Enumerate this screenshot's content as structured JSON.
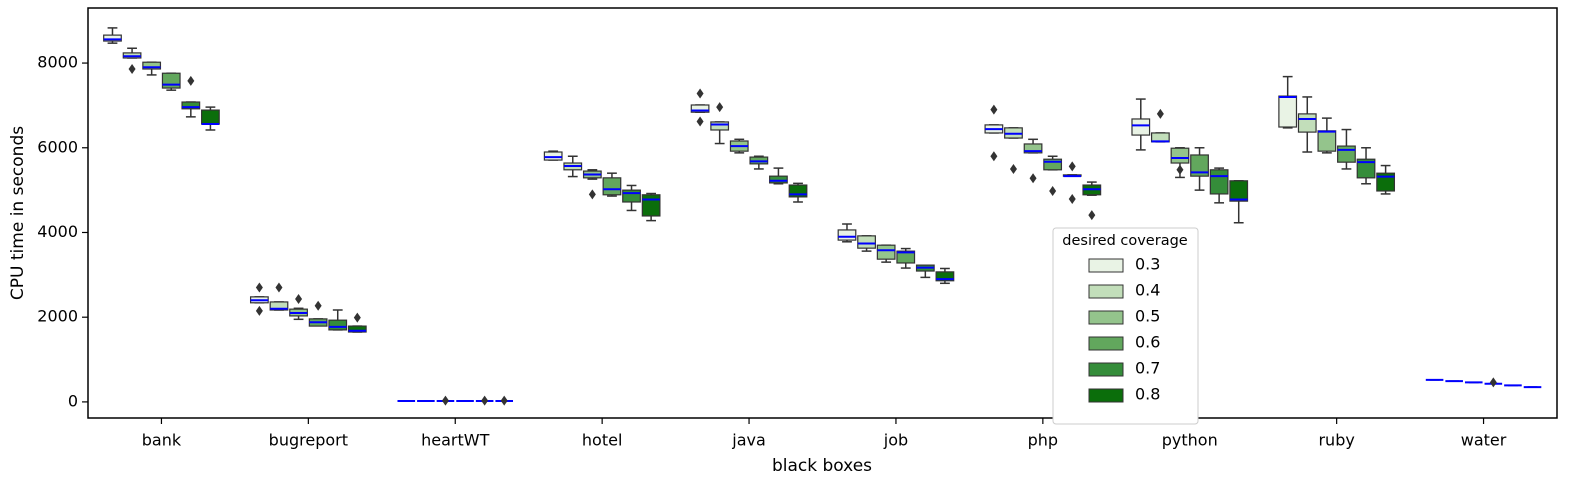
{
  "chart_data": {
    "type": "boxplot",
    "xlabel": "black boxes",
    "ylabel": "CPU time in seconds",
    "categories": [
      "bank",
      "bugreport",
      "heartWT",
      "hotel",
      "java",
      "job",
      "php",
      "python",
      "ruby",
      "water"
    ],
    "ylim": [
      -380,
      9300
    ],
    "yticks": [
      0,
      2000,
      4000,
      6000,
      8000
    ],
    "median_color": "#0000ff",
    "legend_loc": "best",
    "legend_title": "desired coverage",
    "series": [
      {
        "name": "0.3",
        "color": "#e9f3e5",
        "values": [
          [
            8470,
            8520,
            8560,
            8660,
            8830
          ],
          [
            2340,
            2340,
            2400,
            2480,
            2480
          ],
          [
            20,
            20,
            20,
            20,
            20
          ],
          [
            5710,
            5710,
            5780,
            5900,
            5920
          ],
          [
            6840,
            6840,
            6880,
            7010,
            7010
          ],
          [
            3780,
            3820,
            3900,
            4060,
            4200
          ],
          [
            6350,
            6350,
            6440,
            6540,
            6540
          ],
          [
            5950,
            6300,
            6530,
            6680,
            7150
          ],
          [
            6470,
            6490,
            7200,
            7220,
            7680
          ],
          [
            520,
            520,
            520,
            520,
            520
          ]
        ],
        "outliers": [
          [],
          [
            2700,
            2150
          ],
          [],
          [],
          [
            7280,
            6620
          ],
          [],
          [
            6900,
            5800
          ],
          [],
          [],
          []
        ]
      },
      {
        "name": "0.4",
        "color": "#c2deba",
        "values": [
          [
            8120,
            8120,
            8160,
            8240,
            8350
          ],
          [
            2170,
            2170,
            2200,
            2360,
            2360
          ],
          [
            20,
            20,
            20,
            20,
            20
          ],
          [
            5320,
            5480,
            5570,
            5640,
            5800
          ],
          [
            6100,
            6420,
            6550,
            6610,
            6610
          ],
          [
            3560,
            3630,
            3740,
            3920,
            3920
          ],
          [
            6230,
            6230,
            6330,
            6470,
            6470
          ],
          [
            6140,
            6140,
            6150,
            6350,
            6350
          ],
          [
            5900,
            6370,
            6680,
            6800,
            7200
          ],
          [
            490,
            490,
            490,
            490,
            490
          ]
        ],
        "outliers": [
          [
            7860
          ],
          [
            2700
          ],
          [],
          [],
          [
            6960
          ],
          [],
          [
            5500
          ],
          [
            6800
          ],
          [],
          []
        ]
      },
      {
        "name": "0.5",
        "color": "#94c48c",
        "values": [
          [
            7720,
            7860,
            7900,
            8020,
            8020
          ],
          [
            1950,
            2030,
            2100,
            2190,
            2210
          ],
          [
            20,
            20,
            20,
            20,
            20
          ],
          [
            5260,
            5290,
            5370,
            5450,
            5480
          ],
          [
            5880,
            5920,
            6040,
            6160,
            6200
          ],
          [
            3300,
            3370,
            3580,
            3700,
            3700
          ],
          [
            5880,
            5880,
            5920,
            6090,
            6200
          ],
          [
            5300,
            5640,
            5760,
            5990,
            6000
          ],
          [
            5880,
            5920,
            6380,
            6400,
            6700
          ],
          [
            460,
            460,
            460,
            460,
            460
          ]
        ],
        "outliers": [
          [],
          [
            2430
          ],
          [
            30
          ],
          [
            4900
          ],
          [],
          [],
          [
            5280
          ],
          [
            5480
          ],
          [],
          []
        ]
      },
      {
        "name": "0.6",
        "color": "#62a75d",
        "values": [
          [
            7360,
            7410,
            7490,
            7760,
            7760
          ],
          [
            1800,
            1790,
            1880,
            1960,
            1960
          ],
          [
            20,
            20,
            20,
            20,
            20
          ],
          [
            4860,
            4890,
            5020,
            5290,
            5400
          ],
          [
            5500,
            5620,
            5680,
            5780,
            5800
          ],
          [
            3160,
            3280,
            3530,
            3560,
            3620
          ],
          [
            5480,
            5480,
            5670,
            5730,
            5800
          ],
          [
            5000,
            5330,
            5420,
            5830,
            6000
          ],
          [
            5500,
            5660,
            5950,
            6040,
            6430
          ],
          [
            430,
            430,
            430,
            430,
            430
          ]
        ],
        "outliers": [
          [],
          [
            2270
          ],
          [],
          [],
          [],
          [],
          [
            4980
          ],
          [],
          [],
          [
            460
          ]
        ]
      },
      {
        "name": "0.7",
        "color": "#358d3a",
        "values": [
          [
            6730,
            6920,
            6960,
            7080,
            7080
          ],
          [
            1700,
            1700,
            1770,
            1930,
            2170
          ],
          [
            20,
            20,
            20,
            20,
            20
          ],
          [
            4520,
            4720,
            4930,
            5000,
            5110
          ],
          [
            5150,
            5170,
            5220,
            5330,
            5520
          ],
          [
            2940,
            3090,
            3170,
            3230,
            3210
          ],
          [
            5330,
            5330,
            5330,
            5360,
            5360
          ],
          [
            4700,
            4910,
            5330,
            5480,
            5520
          ],
          [
            5150,
            5290,
            5660,
            5730,
            6000
          ],
          [
            390,
            390,
            390,
            390,
            390
          ]
        ],
        "outliers": [
          [
            7580
          ],
          [],
          [
            30
          ],
          [],
          [],
          [],
          [
            5560,
            4790
          ],
          [],
          [],
          []
        ]
      },
      {
        "name": "0.8",
        "color": "#0b6e0b",
        "values": [
          [
            6420,
            6560,
            6560,
            6890,
            6960
          ],
          [
            1650,
            1650,
            1680,
            1790,
            1790
          ],
          [
            20,
            20,
            20,
            20,
            20
          ],
          [
            4280,
            4390,
            4780,
            4890,
            4920
          ],
          [
            4720,
            4840,
            4900,
            5120,
            5160
          ],
          [
            2800,
            2860,
            2900,
            3070,
            3150
          ],
          [
            4880,
            4890,
            5020,
            5120,
            5190
          ],
          [
            4230,
            4740,
            4780,
            5220,
            5220
          ],
          [
            4910,
            4980,
            5320,
            5400,
            5580
          ],
          [
            350,
            350,
            350,
            350,
            350
          ]
        ],
        "outliers": [
          [],
          [
            1990
          ],
          [
            30
          ],
          [],
          [],
          [],
          [
            4410
          ],
          [],
          [],
          []
        ]
      }
    ]
  }
}
